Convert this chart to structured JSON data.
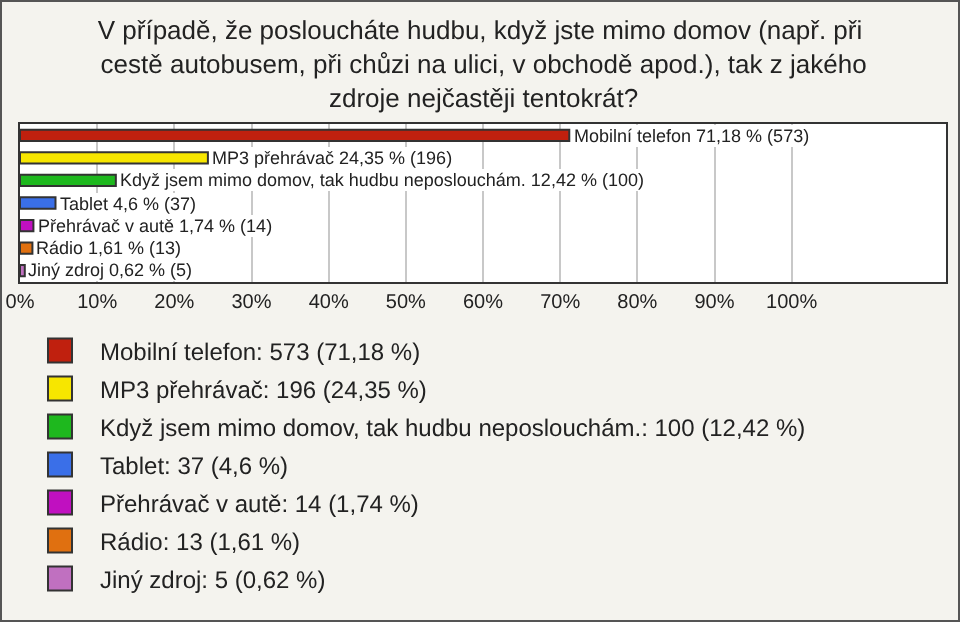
{
  "chart_data": {
    "type": "bar",
    "orientation": "horizontal",
    "title": "V případě, že posloucháte hudbu, když jste mimo domov (např. při cestě autobusem, při chůzi na ulici, v obchodě apod.), tak z jakého zdroje nejčastěji tentokrát?",
    "categories": [
      null,
      null,
      null,
      null,
      null,
      null,
      null
    ],
    "series": [
      {
        "name": "Mobilní telefon: 573 (71,18 %)",
        "color": "#c0200e",
        "values": [
          71.18,
          null,
          null,
          null,
          null,
          null,
          null
        ],
        "value_labels": [
          "Mobilní telefon 71,18 % (573)",
          null,
          null,
          null,
          null,
          null,
          null
        ]
      },
      {
        "name": "MP3 přehrávač: 196 (24,35 %)",
        "color": "#f7e600",
        "values": [
          null,
          24.35,
          null,
          null,
          null,
          null,
          null
        ],
        "value_labels": [
          null,
          "MP3 přehrávač 24,35 % (196)",
          null,
          null,
          null,
          null,
          null
        ]
      },
      {
        "name": "Když jsem mimo domov, tak hudbu neposlouchám.: 100 (12,42 %)",
        "color": "#1eb81e",
        "values": [
          null,
          null,
          12.42,
          null,
          null,
          null,
          null
        ],
        "value_labels": [
          null,
          null,
          "Když jsem mimo domov, tak hudbu neposlouchám. 12,42 % (100)",
          null,
          null,
          null,
          null
        ]
      },
      {
        "name": "Tablet: 37 (4,6 %)",
        "color": "#3a6fe8",
        "values": [
          null,
          null,
          null,
          4.6,
          null,
          null,
          null
        ],
        "value_labels": [
          null,
          null,
          null,
          "Tablet 4,6 % (37)",
          null,
          null,
          null
        ]
      },
      {
        "name": "Přehrávač v autě: 14 (1,74 %)",
        "color": "#c010c0",
        "values": [
          null,
          null,
          null,
          null,
          1.74,
          null,
          null
        ],
        "value_labels": [
          null,
          null,
          null,
          null,
          "Přehrávač v autě 1,74 % (14)",
          null,
          null
        ]
      },
      {
        "name": "Rádio: 13 (1,61 %)",
        "color": "#e07010",
        "values": [
          null,
          null,
          null,
          null,
          null,
          1.61,
          null
        ],
        "value_labels": [
          null,
          null,
          null,
          null,
          null,
          "Rádio 1,61 % (13)",
          null
        ]
      },
      {
        "name": "Jiný zdroj: 5 (0,62 %)",
        "color": "#c070c0",
        "values": [
          null,
          null,
          null,
          null,
          null,
          null,
          0.62
        ],
        "value_labels": [
          null,
          null,
          null,
          null,
          null,
          null,
          "Jiný zdroj 0,62 % (5)"
        ]
      }
    ],
    "xlim": [
      0,
      120
    ],
    "xticks": [
      {
        "value": 0,
        "label": "0%"
      },
      {
        "value": 10,
        "label": "10%"
      },
      {
        "value": 20,
        "label": "20%"
      },
      {
        "value": 30,
        "label": "30%"
      },
      {
        "value": 40,
        "label": "40%"
      },
      {
        "value": 50,
        "label": "50%"
      },
      {
        "value": 60,
        "label": "60%"
      },
      {
        "value": 70,
        "label": "70%"
      },
      {
        "value": 80,
        "label": "80%"
      },
      {
        "value": 90,
        "label": "90%"
      },
      {
        "value": 100,
        "label": "100%"
      }
    ],
    "grid": "x",
    "legend": "bottom",
    "tick_labels": "x"
  }
}
